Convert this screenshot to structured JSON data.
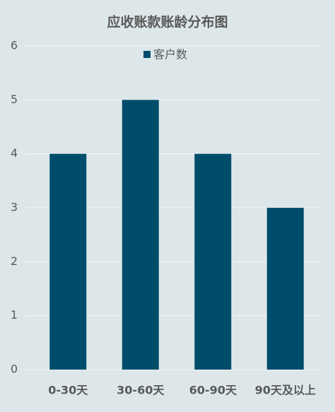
{
  "chart_data": {
    "type": "bar",
    "title": "应收账款账龄分布图",
    "categories": [
      "0-30天",
      "30-60天",
      "60-90天",
      "90天及以上"
    ],
    "series": [
      {
        "name": "客户数",
        "color": "#004d6b",
        "values": [
          4,
          5,
          4,
          3
        ]
      }
    ],
    "ylim": [
      0,
      6
    ],
    "yticks": [
      0,
      1,
      2,
      3,
      4,
      5,
      6
    ],
    "grid": true,
    "legend": "top"
  }
}
